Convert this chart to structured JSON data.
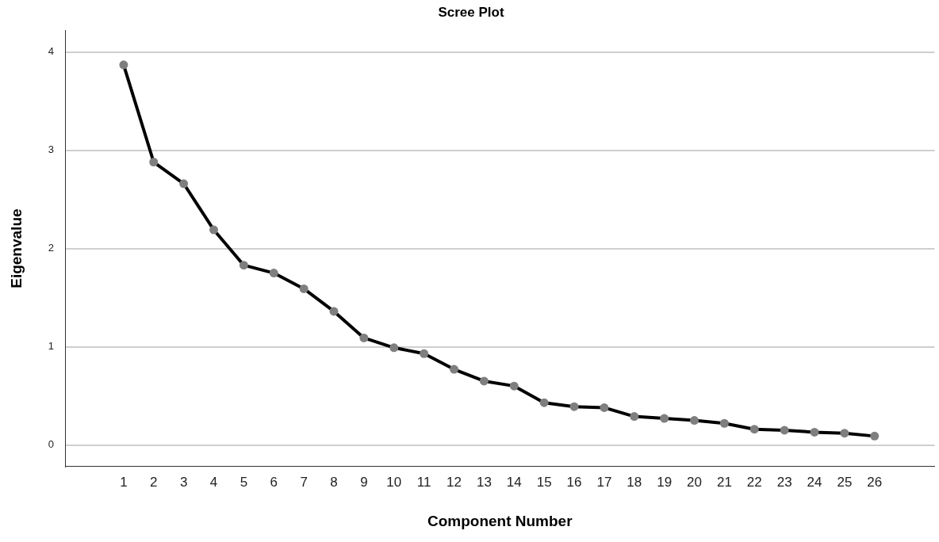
{
  "chart_data": {
    "type": "line",
    "title": "Scree Plot",
    "xlabel": "Component Number",
    "ylabel": "Eigenvalue",
    "x": [
      1,
      2,
      3,
      4,
      5,
      6,
      7,
      8,
      9,
      10,
      11,
      12,
      13,
      14,
      15,
      16,
      17,
      18,
      19,
      20,
      21,
      22,
      23,
      24,
      25,
      26
    ],
    "series": [
      {
        "color": "#000000",
        "values": [
          3.87,
          2.88,
          2.66,
          2.19,
          1.83,
          1.75,
          1.59,
          1.36,
          1.09,
          0.99,
          0.93,
          0.77,
          0.65,
          0.6,
          0.43,
          0.39,
          0.38,
          0.29,
          0.27,
          0.25,
          0.22,
          0.16,
          0.15,
          0.13,
          0.12,
          0.09
        ]
      }
    ],
    "xlim": [
      -0.95,
      28
    ],
    "xticks": [
      1,
      2,
      3,
      4,
      5,
      6,
      7,
      8,
      9,
      10,
      11,
      12,
      13,
      14,
      15,
      16,
      17,
      18,
      19,
      20,
      21,
      22,
      23,
      24,
      25,
      26
    ],
    "ylim": [
      -0.22,
      4.22
    ],
    "yticks": [
      0,
      1,
      2,
      3,
      4
    ],
    "grid": "y",
    "legend": false,
    "marker": "circle",
    "line_style": "solid"
  }
}
